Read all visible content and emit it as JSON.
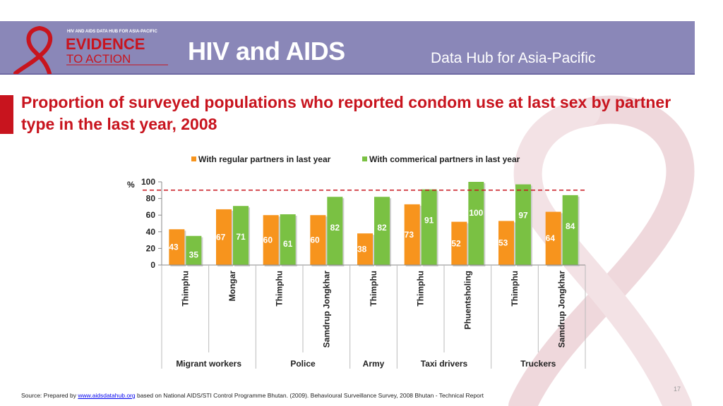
{
  "header": {
    "logo_top_text": "HIV AND AIDS DATA HUB FOR ASIA-PACIFIC",
    "logo_line1": "EVIDENCE",
    "logo_line2": "TO ACTION",
    "title": "HIV and AIDS",
    "subtitle": "Data Hub for Asia-Pacific"
  },
  "slide_title": "Proportion of surveyed populations who reported condom use at last sex by partner type in the last year, 2008",
  "chart_data": {
    "type": "bar",
    "ylabel": "%",
    "ylim": [
      0,
      100
    ],
    "yticks": [
      0,
      20,
      40,
      60,
      80,
      100
    ],
    "reference_line": 90,
    "legend_position": "top",
    "categories": [
      "Thimphu",
      "Mongar",
      "Thimphu",
      "Samdrup Jongkhar",
      "Thimphu",
      "Thimphu",
      "Phuentsholing",
      "Thimphu",
      "Samdrup Jongkhar"
    ],
    "groups": [
      {
        "label": "Migrant workers",
        "span": 2
      },
      {
        "label": "Police",
        "span": 2
      },
      {
        "label": "Army",
        "span": 1
      },
      {
        "label": "Taxi drivers",
        "span": 2
      },
      {
        "label": "Truckers",
        "span": 2
      }
    ],
    "series": [
      {
        "name": "With regular partners in last year",
        "color": "#f7941d",
        "values": [
          43,
          67,
          60,
          60,
          38,
          73,
          52,
          53,
          64
        ]
      },
      {
        "name": "With commerical partners in last year",
        "color": "#7ac143",
        "values": [
          35,
          71,
          61,
          82,
          82,
          91,
          100,
          97,
          84
        ]
      }
    ]
  },
  "page_number": "17",
  "source": {
    "prefix": "Source: Prepared by ",
    "link": "www.aidsdatahub.org",
    "suffix": " based on National AIDS/STI Control Programme Bhutan. (2009). Behavioural Surveillance Survey, 2008 Bhutan - Technical Report"
  }
}
